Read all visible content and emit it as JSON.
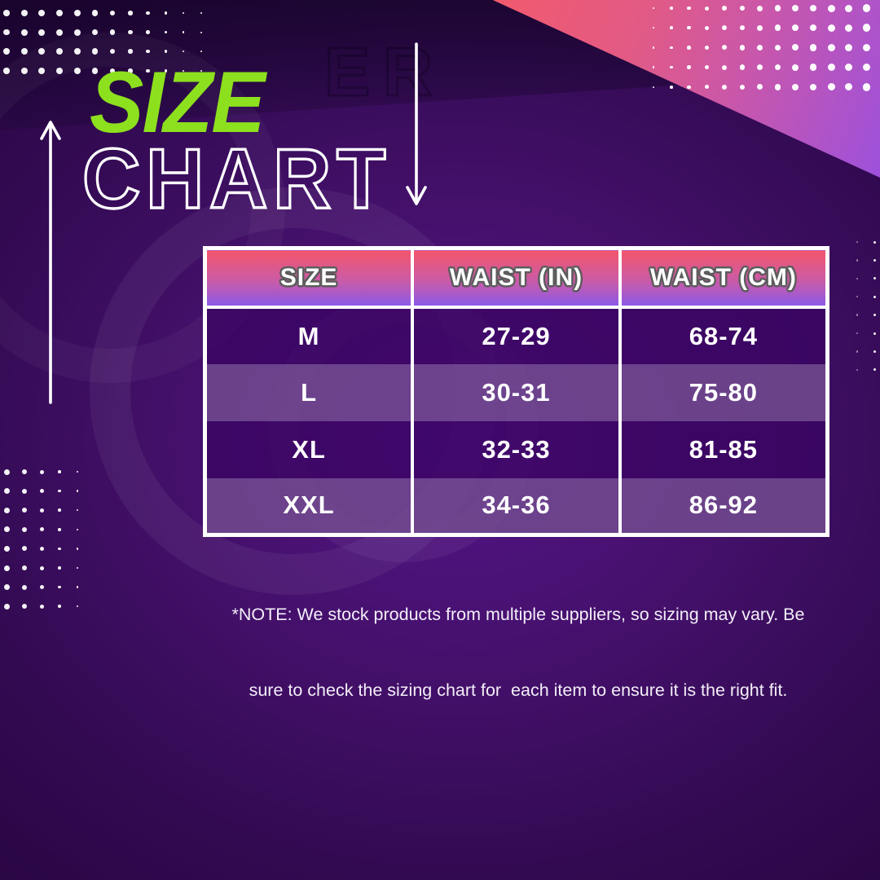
{
  "poster": {
    "title": {
      "word_top": "SIZE",
      "word_bottom": "CHART"
    },
    "watermark_text": "ER",
    "table": {
      "headers": [
        "SIZE",
        "WAIST (IN)",
        "WAIST (CM)"
      ],
      "rows": [
        {
          "size": "M",
          "waist_in": "27-29",
          "waist_cm": "68-74"
        },
        {
          "size": "L",
          "waist_in": "30-31",
          "waist_cm": "75-80"
        },
        {
          "size": "XL",
          "waist_in": "32-33",
          "waist_cm": "81-85"
        },
        {
          "size": "XXL",
          "waist_in": "34-36",
          "waist_cm": "86-92"
        }
      ]
    },
    "note": {
      "line1": "*NOTE: We stock products from multiple suppliers, so sizing may vary. Be",
      "line2": "sure to check the sizing chart for  each item to ensure it is the right fit."
    },
    "icons": [
      "up-arrow-icon",
      "down-arrow-icon"
    ],
    "colors": {
      "accent_green": "#8DE01E",
      "header_gradient_top": "#F4566B",
      "header_gradient_bottom": "#8B5AE8",
      "row_dark": "#4A0D75",
      "row_light": "#8157AE",
      "triangle_pink": "#F25A6C",
      "triangle_purple": "#9D51DC",
      "background_purple": "#431069",
      "text_white": "#FFFFFF"
    }
  },
  "chart_data": {
    "type": "table",
    "title": "SIZE CHART",
    "columns": [
      "SIZE",
      "WAIST (IN)",
      "WAIST (CM)"
    ],
    "rows": [
      [
        "M",
        "27-29",
        "68-74"
      ],
      [
        "L",
        "30-31",
        "75-80"
      ],
      [
        "XL",
        "32-33",
        "81-85"
      ],
      [
        "XXL",
        "34-36",
        "86-92"
      ]
    ],
    "note": "*NOTE: We stock products from multiple suppliers, so sizing may vary. Be sure to check the sizing chart for each item to ensure it is the right fit."
  }
}
